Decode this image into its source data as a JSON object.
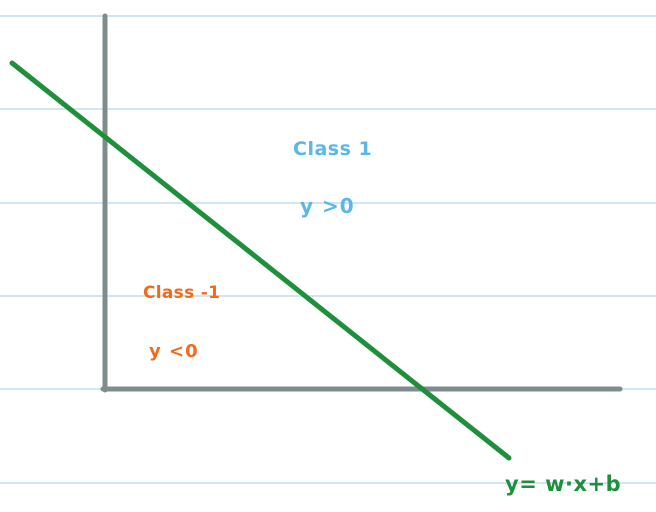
{
  "colors": {
    "background": "#ffffff",
    "ruled_line": "#cfe6f7",
    "axis": "#7f8c8d",
    "boundary": "#1e8f3a",
    "class_positive": "#5ab7ea",
    "class_negative": "#f26a1b"
  },
  "regions": {
    "positive": {
      "name": "Class  1",
      "condition": "y >0"
    },
    "negative": {
      "name": "Class -1",
      "condition": "y <0"
    }
  },
  "boundary": {
    "equation": "y=  w·x+b"
  }
}
